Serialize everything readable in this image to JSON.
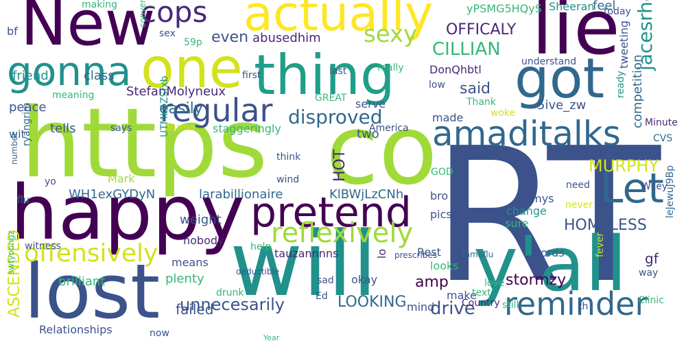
{
  "background": "#ffffff",
  "palette": {
    "purple": "#440154",
    "indigo": "#3b528b",
    "blue": "#31688e",
    "teal": "#21918c",
    "green": "#35b779",
    "lime": "#90d743",
    "yellow": "#fde725"
  },
  "words": [
    {
      "text": "RT",
      "color": "#3b528b",
      "vertical": false
    },
    {
      "text": "https",
      "color": "#a0da39",
      "vertical": false
    },
    {
      "text": "co",
      "color": "#a0da39",
      "vertical": false
    },
    {
      "text": "will",
      "color": "#21918c",
      "vertical": false
    },
    {
      "text": "y'all",
      "color": "#21918c",
      "vertical": false
    },
    {
      "text": "happy",
      "color": "#440154",
      "vertical": false
    },
    {
      "text": "lost",
      "color": "#3b528b",
      "vertical": false
    },
    {
      "text": "New",
      "color": "#440154",
      "vertical": false
    },
    {
      "text": "lie",
      "color": "#440154",
      "vertical": false
    },
    {
      "text": "one",
      "color": "#d2e21b",
      "vertical": false
    },
    {
      "text": "thing",
      "color": "#1f9e89",
      "vertical": false
    },
    {
      "text": "got",
      "color": "#31688e",
      "vertical": false
    },
    {
      "text": "actually",
      "color": "#fde725",
      "vertical": false
    },
    {
      "text": "pretend",
      "color": "#440154",
      "vertical": false
    },
    {
      "text": "Let",
      "color": "#31688e",
      "vertical": false
    },
    {
      "text": "gonna",
      "color": "#21918c",
      "vertical": false
    },
    {
      "text": "amaditalks",
      "color": "#31688e",
      "vertical": false
    },
    {
      "text": "reminder",
      "color": "#31688e",
      "vertical": false
    },
    {
      "text": "regular",
      "color": "#3b528b",
      "vertical": false
    },
    {
      "text": "cops",
      "color": "#482878",
      "vertical": false
    },
    {
      "text": "reflexively",
      "color": "#a0da39",
      "vertical": false
    },
    {
      "text": "offensively",
      "color": "#d2e21b",
      "vertical": false
    },
    {
      "text": "sexy",
      "color": "#a0da39",
      "vertical": false
    },
    {
      "text": "jacesrhee",
      "color": "#21918c",
      "vertical": true
    },
    {
      "text": "disproved",
      "color": "#31688e",
      "vertical": false
    },
    {
      "text": "CILLIAN",
      "color": "#35b779",
      "vertical": false
    },
    {
      "text": "OFFICALY",
      "color": "#482878",
      "vertical": false
    },
    {
      "text": "HOMELESS",
      "color": "#3b528b",
      "vertical": false
    },
    {
      "text": "MURPHY",
      "color": "#d2e21b",
      "vertical": false
    },
    {
      "text": "unnecesarily",
      "color": "#3b528b",
      "vertical": false
    },
    {
      "text": "easily",
      "color": "#31688e",
      "vertical": false
    },
    {
      "text": "drive",
      "color": "#3b528b",
      "vertical": false
    },
    {
      "text": "LOOKING",
      "color": "#31688e",
      "vertical": false
    },
    {
      "text": "ASCENDED",
      "color": "#d2e21b",
      "vertical": true
    },
    {
      "text": "HOT",
      "color": "#482878",
      "vertical": true
    },
    {
      "text": "even",
      "color": "#3b528b",
      "vertical": false
    },
    {
      "text": "said",
      "color": "#3b528b",
      "vertical": false
    },
    {
      "text": "amp",
      "color": "#440154",
      "vertical": false
    },
    {
      "text": "competition",
      "color": "#31688e",
      "vertical": true
    },
    {
      "text": "gf",
      "color": "#482878",
      "vertical": false
    },
    {
      "text": "stormzy",
      "color": "#440154",
      "vertical": false
    },
    {
      "text": "failed",
      "color": "#3b528b",
      "vertical": false
    },
    {
      "text": "abusedhim",
      "color": "#482878",
      "vertical": false
    },
    {
      "text": "friend",
      "color": "#21918c",
      "vertical": false
    },
    {
      "text": "class",
      "color": "#31688e",
      "vertical": false
    },
    {
      "text": "StefanMolyneux",
      "color": "#482878",
      "vertical": false
    },
    {
      "text": "WH1exGYDyN",
      "color": "#31688e",
      "vertical": false
    },
    {
      "text": "larabillionaire",
      "color": "#31688e",
      "vertical": false
    },
    {
      "text": "KlBWjLzCNh",
      "color": "#31688e",
      "vertical": false
    },
    {
      "text": "weight",
      "color": "#3b528b",
      "vertical": false
    },
    {
      "text": "tauzannnns",
      "color": "#482878",
      "vertical": false
    },
    {
      "text": "means",
      "color": "#3b528b",
      "vertical": false
    },
    {
      "text": "plenty",
      "color": "#35b779",
      "vertical": false
    },
    {
      "text": "brilliant",
      "color": "#35b779",
      "vertical": false
    },
    {
      "text": "Relationships",
      "color": "#3b528b",
      "vertical": false
    },
    {
      "text": "DonQhbtl",
      "color": "#482878",
      "vertical": false
    },
    {
      "text": "5ive_zw",
      "color": "#3b528b",
      "vertical": false
    },
    {
      "text": "yPSMG5HQyS",
      "color": "#35b779",
      "vertical": false
    },
    {
      "text": "Sheeran",
      "color": "#21918c",
      "vertical": false
    },
    {
      "text": "feel",
      "color": "#31688e",
      "vertical": false
    },
    {
      "text": "tweeting",
      "color": "#3b528b",
      "vertical": true
    },
    {
      "text": "made",
      "color": "#3b528b",
      "vertical": false
    },
    {
      "text": "two",
      "color": "#3b528b",
      "vertical": false
    },
    {
      "text": "tells",
      "color": "#3b528b",
      "vertical": false
    },
    {
      "text": "peace",
      "color": "#3b528b",
      "vertical": false
    },
    {
      "text": "Mark",
      "color": "#a0da39",
      "vertical": false
    },
    {
      "text": "bro",
      "color": "#3b528b",
      "vertical": false
    },
    {
      "text": "words",
      "color": "#3b528b",
      "vertical": false
    },
    {
      "text": "Rest",
      "color": "#3b528b",
      "vertical": false
    },
    {
      "text": "looks",
      "color": "#35b779",
      "vertical": false
    },
    {
      "text": "make",
      "color": "#3b528b",
      "vertical": false
    },
    {
      "text": "mind",
      "color": "#3b528b",
      "vertical": false
    },
    {
      "text": "nobody",
      "color": "#482878",
      "vertical": false
    },
    {
      "text": "sure",
      "color": "#35b779",
      "vertical": false
    },
    {
      "text": "armys",
      "color": "#3b528b",
      "vertical": false
    },
    {
      "text": "change",
      "color": "#21918c",
      "vertical": false
    },
    {
      "text": "pics",
      "color": "#3b528b",
      "vertical": false
    },
    {
      "text": "lo",
      "color": "#482878",
      "vertical": true
    },
    {
      "text": "okay",
      "color": "#3b528b",
      "vertical": false
    },
    {
      "text": "serve",
      "color": "#3b528b",
      "vertical": false
    },
    {
      "text": "sex",
      "color": "#3b528b",
      "vertical": false
    },
    {
      "text": "59p",
      "color": "#35b779",
      "vertical": false
    },
    {
      "text": "bf",
      "color": "#3b528b",
      "vertical": false
    },
    {
      "text": "making",
      "color": "#35b779",
      "vertical": false
    },
    {
      "text": "conversati",
      "color": "#35b779",
      "vertical": true
    },
    {
      "text": "meaning",
      "color": "#35b779",
      "vertical": false
    },
    {
      "text": "wit",
      "color": "#3b528b",
      "vertical": false
    },
    {
      "text": "says",
      "color": "#3b528b",
      "vertical": false
    },
    {
      "text": "Burna",
      "color": "#d2e21b",
      "vertical": false
    },
    {
      "text": "staggeringly",
      "color": "#35b779",
      "vertical": false
    },
    {
      "text": "America",
      "color": "#3b528b",
      "vertical": false
    },
    {
      "text": "UTMK4ZSfxb",
      "color": "#21918c",
      "vertical": true
    },
    {
      "text": "ryangrim",
      "color": "#31688e",
      "vertical": true
    },
    {
      "text": "number",
      "color": "#31688e",
      "vertical": true
    },
    {
      "text": "yo",
      "color": "#3b528b",
      "vertical": false
    },
    {
      "text": "flu",
      "color": "#31688e",
      "vertical": false
    },
    {
      "text": "think",
      "color": "#3b528b",
      "vertical": false
    },
    {
      "text": "wind",
      "color": "#3b528b",
      "vertical": false
    },
    {
      "text": "GOD",
      "color": "#35b779",
      "vertical": false
    },
    {
      "text": "first",
      "color": "#3b528b",
      "vertical": false
    },
    {
      "text": "GREAT",
      "color": "#35b779",
      "vertical": false
    },
    {
      "text": "last",
      "color": "#3b528b",
      "vertical": false
    },
    {
      "text": "really",
      "color": "#35b779",
      "vertical": false
    },
    {
      "text": "understand",
      "color": "#3b528b",
      "vertical": false
    },
    {
      "text": "low",
      "color": "#3b528b",
      "vertical": false
    },
    {
      "text": "Thank",
      "color": "#35b779",
      "vertical": false
    },
    {
      "text": "woke",
      "color": "#d2e21b",
      "vertical": false
    },
    {
      "text": "ready",
      "color": "#21918c",
      "vertical": true
    },
    {
      "text": "today",
      "color": "#3b528b",
      "vertical": false
    },
    {
      "text": "Minute",
      "color": "#482878",
      "vertical": false
    },
    {
      "text": "CVS",
      "color": "#31688e",
      "vertical": false
    },
    {
      "text": "Wiley",
      "color": "#3b528b",
      "vertical": false
    },
    {
      "text": "need",
      "color": "#3b528b",
      "vertical": false
    },
    {
      "text": "never",
      "color": "#d2e21b",
      "vertical": false
    },
    {
      "text": "leJewuJ9Bp",
      "color": "#31688e",
      "vertical": true
    },
    {
      "text": "fever",
      "color": "#d2e21b",
      "vertical": true
    },
    {
      "text": "way",
      "color": "#3b528b",
      "vertical": false
    },
    {
      "text": "Clinic",
      "color": "#35b779",
      "vertical": false
    },
    {
      "text": "th",
      "color": "#3b528b",
      "vertical": false
    },
    {
      "text": "Country",
      "color": "#482878",
      "vertical": false
    },
    {
      "text": "still",
      "color": "#35b779",
      "vertical": false
    },
    {
      "text": "text",
      "color": "#35b779",
      "vertical": false
    },
    {
      "text": "love",
      "color": "#35b779",
      "vertical": false
    },
    {
      "text": "tamaflu",
      "color": "#31688e",
      "vertical": false
    },
    {
      "text": "prescribes",
      "color": "#3b528b",
      "vertical": false
    },
    {
      "text": "deductible",
      "color": "#3b528b",
      "vertical": false
    },
    {
      "text": "sad",
      "color": "#3b528b",
      "vertical": false
    },
    {
      "text": "Ed",
      "color": "#3b528b",
      "vertical": false
    },
    {
      "text": "drunk",
      "color": "#35b779",
      "vertical": false
    },
    {
      "text": "witness",
      "color": "#3b528b",
      "vertical": false
    },
    {
      "text": "help",
      "color": "#35b779",
      "vertical": false
    },
    {
      "text": "swtyoongz",
      "color": "#35b779",
      "vertical": true
    },
    {
      "text": "now",
      "color": "#3b528b",
      "vertical": false
    },
    {
      "text": "Year",
      "color": "#35b779",
      "vertical": false
    }
  ]
}
